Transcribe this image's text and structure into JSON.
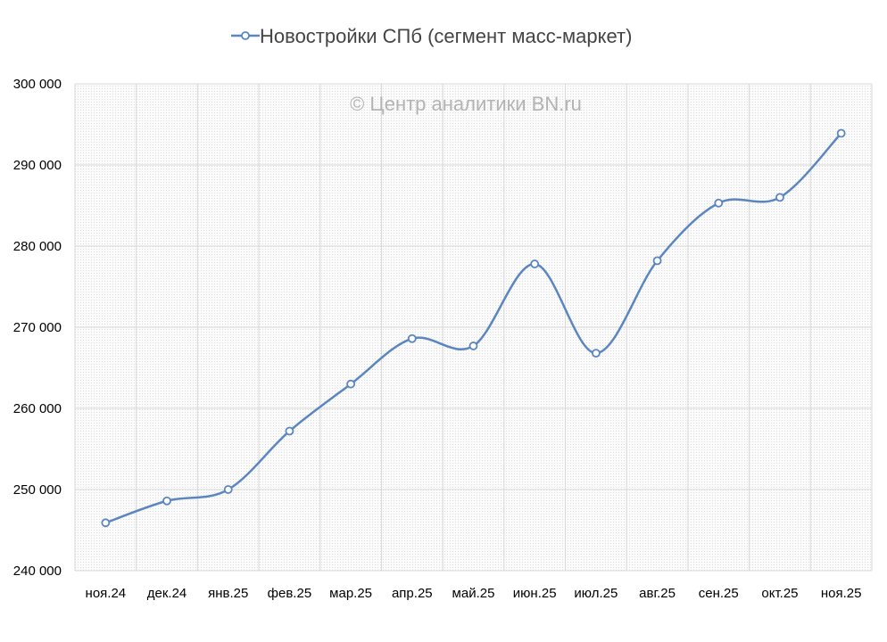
{
  "chart_data": {
    "type": "line",
    "title": "",
    "xlabel": "",
    "ylabel": "",
    "watermark": "© Центр аналитики BN.ru",
    "legend_position": "top",
    "grid": true,
    "ylim": [
      240000,
      300000
    ],
    "yticks": [
      240000,
      250000,
      260000,
      270000,
      280000,
      290000,
      300000
    ],
    "ytick_labels": [
      "240 000",
      "250 000",
      "260 000",
      "270 000",
      "280 000",
      "290 000",
      "300 000"
    ],
    "categories": [
      "ноя.24",
      "дек.24",
      "янв.25",
      "фев.25",
      "мар.25",
      "апр.25",
      "май.25",
      "июн.25",
      "июл.25",
      "авг.25",
      "сен.25",
      "окт.25",
      "ноя.25"
    ],
    "series": [
      {
        "name": "Новостройки СПб (сегмент масс-маркет)",
        "color": "#5b86c0",
        "values": [
          245900,
          248600,
          250000,
          257200,
          263000,
          268600,
          267700,
          277800,
          266800,
          278200,
          285300,
          286000,
          293900
        ]
      }
    ]
  }
}
